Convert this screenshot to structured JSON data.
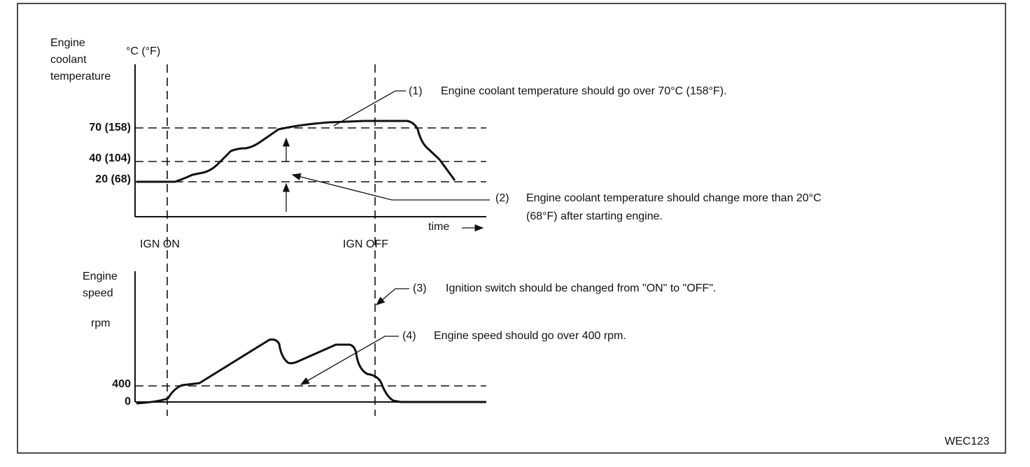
{
  "temperature_graph": {
    "axis_title": [
      "Engine",
      "coolant",
      "temperature"
    ],
    "unit": "°C (°F)",
    "levels": [
      "70 (158)",
      "40 (104)",
      "20 (68)"
    ],
    "time_label": "time"
  },
  "events": [
    "IGN ON",
    "IGN OFF"
  ],
  "speed_graph": {
    "axis_title": [
      "Engine",
      "speed"
    ],
    "unit": "rpm",
    "levels": [
      "400",
      "0"
    ]
  },
  "notes": [
    {
      "number": "(1)",
      "lines": [
        "Engine coolant temperature should go over 70°C (158°F)."
      ]
    },
    {
      "number": "(2)",
      "lines": [
        "Engine coolant temperature should change more than 20°C",
        "(68°F) after starting engine."
      ]
    },
    {
      "number": "(3)",
      "lines": [
        "Ignition switch should be changed from \"ON\" to \"OFF\"."
      ]
    },
    {
      "number": "(4)",
      "lines": [
        "Engine speed should go over 400 rpm."
      ]
    }
  ],
  "figure_id": "WEC123"
}
